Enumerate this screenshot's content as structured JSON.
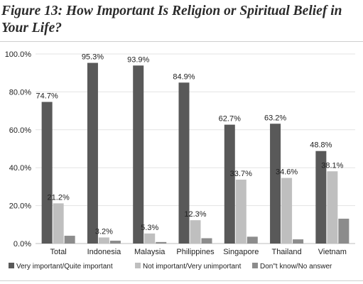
{
  "title": "Figure 13: How Important Is Religion or Spiritual Belief in Your Life?",
  "chart_data": {
    "type": "bar",
    "title": "Figure 13: How Important Is Religion or Spiritual Belief in Your Life?",
    "categories": [
      "Total",
      "Indonesia",
      "Malaysia",
      "Philippines",
      "Singapore",
      "Thailand",
      "Vietnam"
    ],
    "series": [
      {
        "name": "Very important/Quite important",
        "values": [
          74.7,
          95.3,
          93.9,
          84.9,
          62.7,
          63.2,
          48.8
        ],
        "color": "#595959",
        "labels": [
          "74.7%",
          "95.3%",
          "93.9%",
          "84.9%",
          "62.7%",
          "63.2%",
          "48.8%"
        ]
      },
      {
        "name": "Not important/Very unimportant",
        "values": [
          21.2,
          3.2,
          5.3,
          12.3,
          33.7,
          34.6,
          38.1
        ],
        "color": "#bfbfbf",
        "labels": [
          "21.2%",
          "3.2%",
          "5.3%",
          "12.3%",
          "33.7%",
          "34.6%",
          "38.1%"
        ]
      },
      {
        "name": "Don\"t know/No answer",
        "values": [
          4.1,
          1.5,
          0.8,
          2.8,
          3.6,
          2.2,
          13.1
        ],
        "color": "#8c8c8c",
        "labels": []
      }
    ],
    "yticks": [
      "0.0%",
      "20.0%",
      "40.0%",
      "60.0%",
      "80.0%",
      "100.0%"
    ],
    "ylim": [
      0,
      100
    ],
    "grid": true,
    "legend_position": "bottom"
  }
}
